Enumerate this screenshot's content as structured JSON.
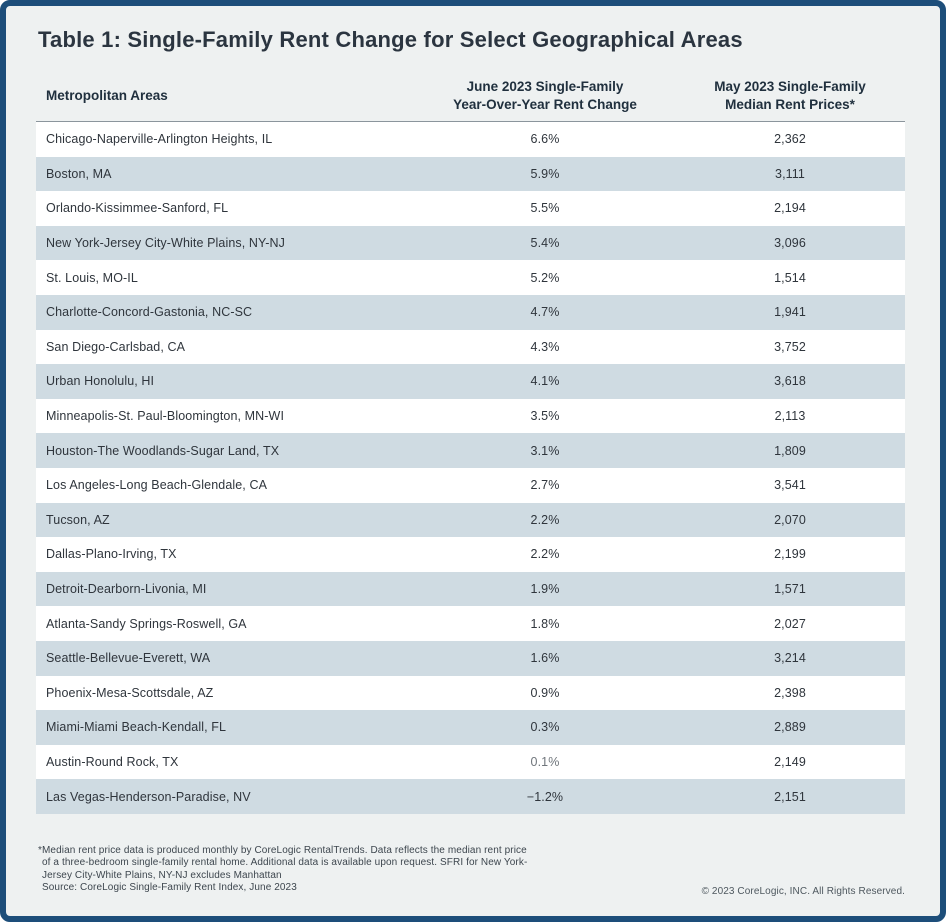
{
  "title": "Table 1: Single-Family Rent Change for Select Geographical Areas",
  "chart_data": {
    "type": "table",
    "title": "Table 1: Single-Family Rent Change for Select Geographical Areas",
    "columns": [
      "Metropolitan Areas",
      "June 2023 Single-Family\nYear-Over-Year Rent Change",
      "May 2023 Single-Family\nMedian Rent Prices*"
    ],
    "rows": [
      {
        "area": "Chicago-Naperville-Arlington Heights, IL",
        "yoy_rent_change": "6.6%",
        "median_rent": "2,362"
      },
      {
        "area": "Boston, MA",
        "yoy_rent_change": "5.9%",
        "median_rent": "3,111"
      },
      {
        "area": "Orlando-Kissimmee-Sanford, FL",
        "yoy_rent_change": "5.5%",
        "median_rent": "2,194"
      },
      {
        "area": "New York-Jersey City-White Plains, NY-NJ",
        "yoy_rent_change": "5.4%",
        "median_rent": "3,096"
      },
      {
        "area": "St. Louis, MO-IL",
        "yoy_rent_change": "5.2%",
        "median_rent": "1,514"
      },
      {
        "area": "Charlotte-Concord-Gastonia, NC-SC",
        "yoy_rent_change": "4.7%",
        "median_rent": "1,941"
      },
      {
        "area": "San Diego-Carlsbad, CA",
        "yoy_rent_change": "4.3%",
        "median_rent": "3,752"
      },
      {
        "area": "Urban Honolulu, HI",
        "yoy_rent_change": "4.1%",
        "median_rent": "3,618"
      },
      {
        "area": "Minneapolis-St. Paul-Bloomington, MN-WI",
        "yoy_rent_change": "3.5%",
        "median_rent": "2,113"
      },
      {
        "area": "Houston-The Woodlands-Sugar Land, TX",
        "yoy_rent_change": "3.1%",
        "median_rent": "1,809"
      },
      {
        "area": "Los Angeles-Long Beach-Glendale, CA",
        "yoy_rent_change": "2.7%",
        "median_rent": "3,541"
      },
      {
        "area": "Tucson, AZ",
        "yoy_rent_change": "2.2%",
        "median_rent": "2,070"
      },
      {
        "area": "Dallas-Plano-Irving, TX",
        "yoy_rent_change": "2.2%",
        "median_rent": "2,199"
      },
      {
        "area": "Detroit-Dearborn-Livonia, MI",
        "yoy_rent_change": "1.9%",
        "median_rent": "1,571"
      },
      {
        "area": "Atlanta-Sandy Springs-Roswell, GA",
        "yoy_rent_change": "1.8%",
        "median_rent": "2,027"
      },
      {
        "area": "Seattle-Bellevue-Everett, WA",
        "yoy_rent_change": "1.6%",
        "median_rent": "3,214"
      },
      {
        "area": "Phoenix-Mesa-Scottsdale, AZ",
        "yoy_rent_change": "0.9%",
        "median_rent": "2,398"
      },
      {
        "area": "Miami-Miami Beach-Kendall, FL",
        "yoy_rent_change": "0.3%",
        "median_rent": "2,889"
      },
      {
        "area": "Austin-Round Rock, TX",
        "yoy_rent_change": "0.1%",
        "median_rent": "2,149",
        "muted": true
      },
      {
        "area": "Las Vegas-Henderson-Paradise, NV",
        "yoy_rent_change": "−1.2%",
        "median_rent": "2,151"
      }
    ],
    "layout": {
      "row_striping": "alternating white and blue-gray, starting white",
      "column_alignment": [
        "left",
        "center",
        "center"
      ]
    }
  },
  "footnote": {
    "lines": [
      "*Median rent price data is produced monthly by CoreLogic RentalTrends. Data reflects the median rent price",
      "of a three-bedroom single-family rental home. Additional data is available upon request. SFRI for New York-",
      "Jersey City-White Plains, NY-NJ excludes Manhattan",
      "Source: CoreLogic Single-Family Rent Index, June 2023"
    ]
  },
  "copyright": "© 2023 CoreLogic, INC. All Rights Reserved.",
  "colors": {
    "border_navy": "#1d4e7a",
    "background": "#eef1f1",
    "row_shaded": "#cfdbe2",
    "row_white": "#ffffff",
    "title_text": "#2b3540",
    "header_text": "#20303e",
    "body_text": "#2f353c",
    "muted_text": "#70767c",
    "header_rule": "#8b959c"
  }
}
